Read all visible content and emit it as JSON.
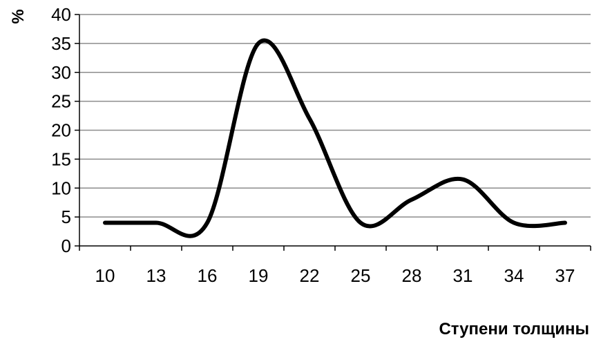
{
  "chart_data": {
    "type": "line",
    "title": "",
    "xlabel": "Ступени толщины",
    "ylabel": "%",
    "x": [
      "10",
      "13",
      "16",
      "19",
      "22",
      "25",
      "28",
      "31",
      "34",
      "37"
    ],
    "series": [
      {
        "values": [
          4,
          4,
          4,
          35,
          22,
          4,
          8,
          11.5,
          4,
          4
        ]
      }
    ],
    "ylim": [
      0,
      40
    ],
    "yticks": [
      0,
      5,
      10,
      15,
      20,
      25,
      30,
      35,
      40
    ],
    "grid": true,
    "legend": "none",
    "colors": {
      "line": "#000000",
      "grid": "#8c8c8c",
      "axis": "#000000"
    }
  }
}
